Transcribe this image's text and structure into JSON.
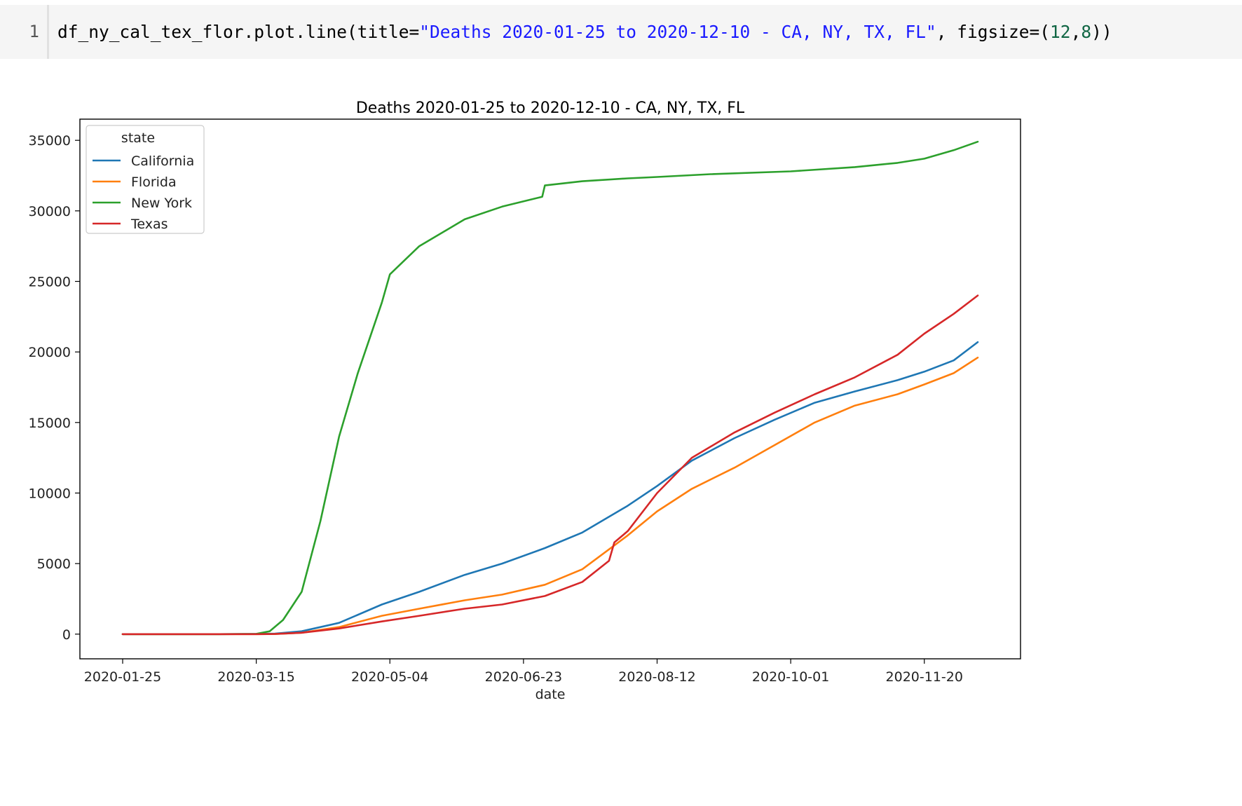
{
  "code_cell": {
    "line_number": "1",
    "tokens": [
      {
        "text": "df_ny_cal_tex_flor.plot.line(title=",
        "kind": "plain"
      },
      {
        "text": "\"Deaths 2020-01-25 to 2020-12-10 - CA, NY, TX, FL\"",
        "kind": "string"
      },
      {
        "text": ", figsize=(",
        "kind": "plain"
      },
      {
        "text": "12",
        "kind": "number"
      },
      {
        "text": ",",
        "kind": "plain"
      },
      {
        "text": "8",
        "kind": "number"
      },
      {
        "text": "))",
        "kind": "plain"
      }
    ]
  },
  "chart_data": {
    "type": "line",
    "title": "Deaths 2020-01-25 to 2020-12-10 - CA, NY, TX, FL",
    "xlabel": "date",
    "ylabel": "",
    "x_range": [
      "2020-01-25",
      "2020-12-10"
    ],
    "xlim": [
      "2020-01-09",
      "2020-12-26"
    ],
    "ylim": [
      -1750,
      36500
    ],
    "x_ticks": [
      "2020-01-25",
      "2020-03-15",
      "2020-05-04",
      "2020-06-23",
      "2020-08-12",
      "2020-10-01",
      "2020-11-20"
    ],
    "y_ticks": [
      0,
      5000,
      10000,
      15000,
      20000,
      25000,
      30000,
      35000
    ],
    "grid": false,
    "legend": {
      "title": "state",
      "placement": "top-left"
    },
    "series": [
      {
        "name": "California",
        "color": "#1f77b4",
        "points": [
          [
            "2020-01-25",
            0
          ],
          [
            "2020-03-01",
            0
          ],
          [
            "2020-03-15",
            10
          ],
          [
            "2020-03-22",
            40
          ],
          [
            "2020-04-01",
            200
          ],
          [
            "2020-04-15",
            800
          ],
          [
            "2020-05-01",
            2100
          ],
          [
            "2020-05-15",
            3000
          ],
          [
            "2020-06-01",
            4200
          ],
          [
            "2020-06-15",
            5000
          ],
          [
            "2020-07-01",
            6100
          ],
          [
            "2020-07-15",
            7200
          ],
          [
            "2020-08-01",
            9100
          ],
          [
            "2020-08-12",
            10500
          ],
          [
            "2020-08-25",
            12300
          ],
          [
            "2020-09-10",
            13900
          ],
          [
            "2020-09-25",
            15200
          ],
          [
            "2020-10-10",
            16400
          ],
          [
            "2020-10-25",
            17200
          ],
          [
            "2020-11-10",
            18000
          ],
          [
            "2020-11-20",
            18600
          ],
          [
            "2020-12-01",
            19400
          ],
          [
            "2020-12-10",
            20700
          ]
        ]
      },
      {
        "name": "Florida",
        "color": "#ff7f0e",
        "points": [
          [
            "2020-01-25",
            0
          ],
          [
            "2020-03-01",
            0
          ],
          [
            "2020-03-15",
            0
          ],
          [
            "2020-03-22",
            10
          ],
          [
            "2020-04-01",
            100
          ],
          [
            "2020-04-15",
            500
          ],
          [
            "2020-05-01",
            1300
          ],
          [
            "2020-05-15",
            1800
          ],
          [
            "2020-06-01",
            2400
          ],
          [
            "2020-06-15",
            2800
          ],
          [
            "2020-07-01",
            3500
          ],
          [
            "2020-07-15",
            4600
          ],
          [
            "2020-08-01",
            7000
          ],
          [
            "2020-08-12",
            8700
          ],
          [
            "2020-08-25",
            10300
          ],
          [
            "2020-09-10",
            11800
          ],
          [
            "2020-09-25",
            13400
          ],
          [
            "2020-10-10",
            15000
          ],
          [
            "2020-10-25",
            16200
          ],
          [
            "2020-11-10",
            17000
          ],
          [
            "2020-11-20",
            17700
          ],
          [
            "2020-12-01",
            18500
          ],
          [
            "2020-12-10",
            19600
          ]
        ]
      },
      {
        "name": "New York",
        "color": "#2ca02c",
        "points": [
          [
            "2020-01-25",
            0
          ],
          [
            "2020-03-01",
            0
          ],
          [
            "2020-03-15",
            20
          ],
          [
            "2020-03-20",
            200
          ],
          [
            "2020-03-25",
            1000
          ],
          [
            "2020-04-01",
            3000
          ],
          [
            "2020-04-08",
            8000
          ],
          [
            "2020-04-15",
            14000
          ],
          [
            "2020-04-22",
            18500
          ],
          [
            "2020-05-01",
            23500
          ],
          [
            "2020-05-04",
            25500
          ],
          [
            "2020-05-15",
            27500
          ],
          [
            "2020-06-01",
            29400
          ],
          [
            "2020-06-15",
            30300
          ],
          [
            "2020-06-30",
            31000
          ],
          [
            "2020-07-01",
            31800
          ],
          [
            "2020-07-15",
            32100
          ],
          [
            "2020-08-01",
            32300
          ],
          [
            "2020-08-12",
            32400
          ],
          [
            "2020-09-01",
            32600
          ],
          [
            "2020-10-01",
            32800
          ],
          [
            "2020-10-25",
            33100
          ],
          [
            "2020-11-10",
            33400
          ],
          [
            "2020-11-20",
            33700
          ],
          [
            "2020-12-01",
            34300
          ],
          [
            "2020-12-10",
            34900
          ]
        ]
      },
      {
        "name": "Texas",
        "color": "#d62728",
        "points": [
          [
            "2020-01-25",
            0
          ],
          [
            "2020-03-01",
            0
          ],
          [
            "2020-03-15",
            0
          ],
          [
            "2020-03-22",
            10
          ],
          [
            "2020-04-01",
            100
          ],
          [
            "2020-04-15",
            400
          ],
          [
            "2020-05-01",
            900
          ],
          [
            "2020-05-15",
            1300
          ],
          [
            "2020-06-01",
            1800
          ],
          [
            "2020-06-15",
            2100
          ],
          [
            "2020-07-01",
            2700
          ],
          [
            "2020-07-15",
            3700
          ],
          [
            "2020-07-25",
            5200
          ],
          [
            "2020-07-27",
            6500
          ],
          [
            "2020-08-01",
            7300
          ],
          [
            "2020-08-12",
            10000
          ],
          [
            "2020-08-25",
            12500
          ],
          [
            "2020-09-10",
            14300
          ],
          [
            "2020-09-25",
            15700
          ],
          [
            "2020-10-10",
            17000
          ],
          [
            "2020-10-25",
            18200
          ],
          [
            "2020-11-10",
            19800
          ],
          [
            "2020-11-20",
            21300
          ],
          [
            "2020-12-01",
            22700
          ],
          [
            "2020-12-10",
            24000
          ]
        ]
      }
    ]
  }
}
